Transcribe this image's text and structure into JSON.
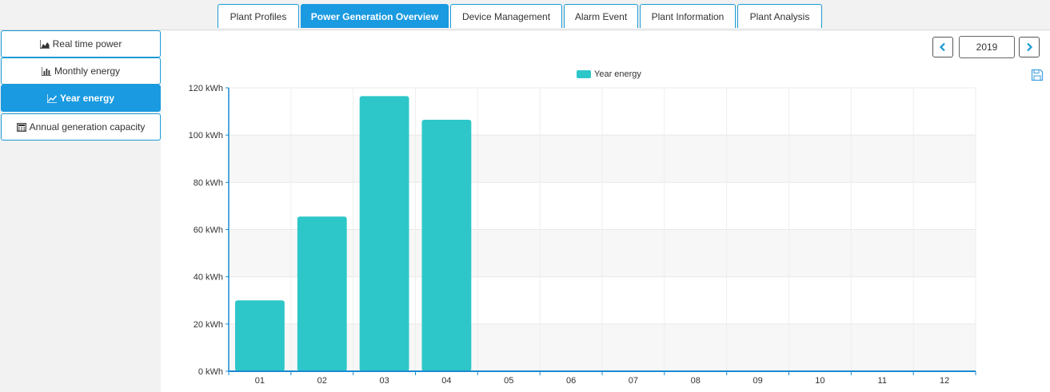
{
  "tabs": [
    {
      "label": "Plant Profiles",
      "active": false
    },
    {
      "label": "Power Generation Overview",
      "active": true
    },
    {
      "label": "Device Management",
      "active": false
    },
    {
      "label": "Alarm Event",
      "active": false
    },
    {
      "label": "Plant Information",
      "active": false
    },
    {
      "label": "Plant Analysis",
      "active": false
    }
  ],
  "sidebar": {
    "items": [
      {
        "label": "Real time power",
        "icon": "area-chart-icon",
        "active": false
      },
      {
        "label": "Monthly energy",
        "icon": "bar-chart-icon",
        "active": false
      },
      {
        "label": "Year energy",
        "icon": "line-chart-icon",
        "active": true
      },
      {
        "label": "Annual generation capacity",
        "icon": "calculator-icon",
        "active": false
      }
    ]
  },
  "year_selector": {
    "value": "2019",
    "prev_icon": "chevron-left-icon",
    "next_icon": "chevron-right-icon"
  },
  "toolbox": {
    "save_icon": "save-as-image-icon"
  },
  "colors": {
    "accent": "#1a9ae0",
    "bar": "#2ec7c9",
    "axis": "#1a8ad0"
  },
  "chart_data": {
    "type": "bar",
    "categories": [
      "01",
      "02",
      "03",
      "04",
      "05",
      "06",
      "07",
      "08",
      "09",
      "10",
      "11",
      "12"
    ],
    "series": [
      {
        "name": "Year energy",
        "values": [
          30,
          65.5,
          116.5,
          106.5,
          0,
          0,
          0,
          0,
          0,
          0,
          0,
          0
        ]
      }
    ],
    "ylim": [
      0,
      120
    ],
    "yticks": [
      0,
      20,
      40,
      60,
      80,
      100,
      120
    ],
    "y_unit": "kWh",
    "legend": "top-center",
    "grid": true
  }
}
